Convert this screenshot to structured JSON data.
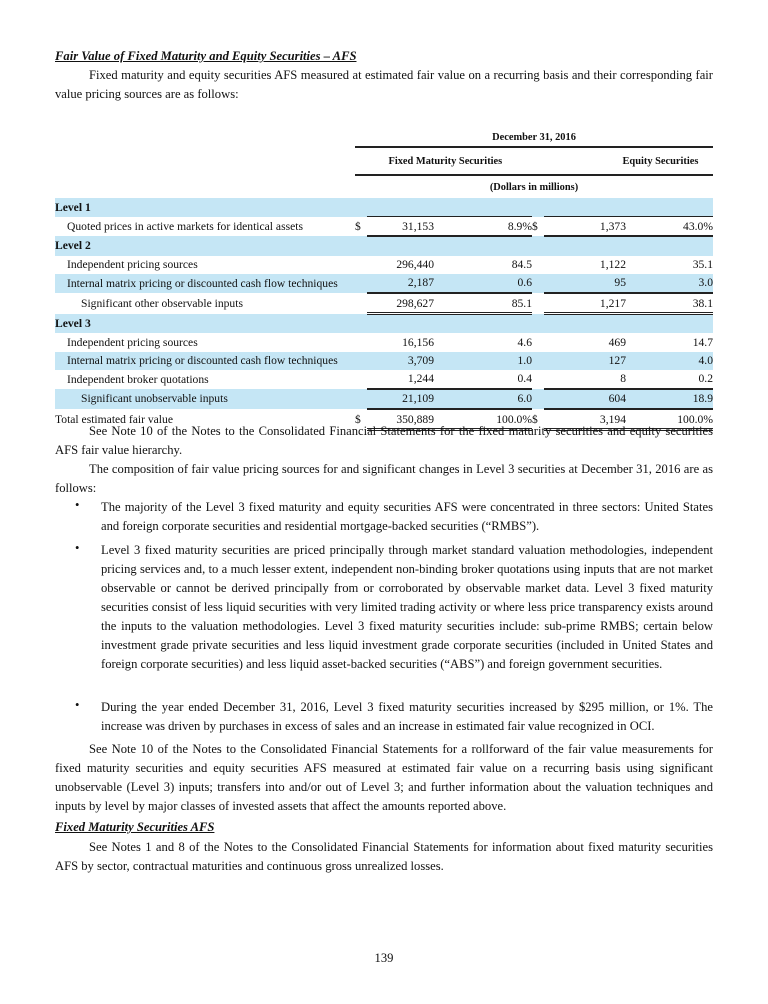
{
  "heading1": "Fair Value of Fixed Maturity and Equity Securities – AFS",
  "intro": "Fixed maturity and equity securities AFS measured at estimated fair value on a recurring basis and their corresponding fair value pricing sources are as follows:",
  "table": {
    "date_header": "December 31, 2016",
    "col_fixed": "Fixed Maturity Securities",
    "col_equity": "Equity Securities",
    "units": "(Dollars in millions)",
    "rows": [
      {
        "label": "Level 1"
      },
      {
        "label": "Quoted prices in active markets for identical assets",
        "d1": "$",
        "fv": "31,153",
        "fp": "8.9%",
        "d2": "$",
        "ev": "1,373",
        "ep": "43.0%"
      },
      {
        "label": "Level 2"
      },
      {
        "label": "Independent pricing sources",
        "fv": "296,440",
        "fp": "84.5",
        "ev": "1,122",
        "ep": "35.1"
      },
      {
        "label": "Internal matrix pricing or discounted cash flow techniques",
        "fv": "2,187",
        "fp": "0.6",
        "ev": "95",
        "ep": "3.0"
      },
      {
        "label": "Significant other observable inputs",
        "fv": "298,627",
        "fp": "85.1",
        "ev": "1,217",
        "ep": "38.1"
      },
      {
        "label": "Level 3"
      },
      {
        "label": "Independent pricing sources",
        "fv": "16,156",
        "fp": "4.6",
        "ev": "469",
        "ep": "14.7"
      },
      {
        "label": "Internal matrix pricing or discounted cash flow techniques",
        "fv": "3,709",
        "fp": "1.0",
        "ev": "127",
        "ep": "4.0"
      },
      {
        "label": "Independent broker quotations",
        "fv": "1,244",
        "fp": "0.4",
        "ev": "8",
        "ep": "0.2"
      },
      {
        "label": "Significant unobservable inputs",
        "fv": "21,109",
        "fp": "6.0",
        "ev": "604",
        "ep": "18.9"
      },
      {
        "label": "Total estimated fair value",
        "d1": "$",
        "fv": "350,889",
        "fp": "100.0%",
        "d2": "$",
        "ev": "3,194",
        "ep": "100.0%"
      }
    ]
  },
  "para1": "See Note 10 of the Notes to the Consolidated Financial Statements for the fixed maturity securities and equity securities AFS fair value hierarchy.",
  "para2": "The composition of fair value pricing sources for and significant changes in Level 3 securities at December 31, 2016 are as follows:",
  "bullet_symbol": "•",
  "bullets": [
    "The majority of the Level 3 fixed maturity and equity securities AFS were concentrated in three sectors: United States and foreign corporate securities and residential mortgage-backed securities (“RMBS”).",
    "Level 3 fixed maturity securities are priced principally through market standard valuation methodologies, independent pricing services and, to a much lesser extent, independent non-binding broker quotations using inputs that are not market observable or cannot be derived principally from or corroborated by observable market data. Level 3 fixed maturity securities consist of less liquid securities with very limited trading activity or where less price transparency exists around the inputs to the valuation methodologies. Level 3 fixed maturity securities include: sub-prime RMBS; certain below investment grade private securities and less liquid investment grade corporate securities (included in United States and foreign corporate securities) and less liquid asset-backed securities (“ABS”) and foreign government securities.",
    "During the year ended December 31, 2016, Level 3 fixed maturity securities increased by $295 million, or 1%. The increase was driven by purchases in excess of sales and an increase in estimated fair value recognized in OCI."
  ],
  "para3": "See Note 10 of the Notes to the Consolidated Financial Statements for a rollforward of the fair value measurements for fixed maturity securities and equity securities AFS measured at estimated fair value on a recurring basis using significant unobservable (Level 3) inputs; transfers into and/or out of Level 3; and further information about the valuation techniques and inputs by level by major classes of invested assets that affect the amounts reported above.",
  "heading2": "Fixed Maturity Securities AFS",
  "para4": "See Notes 1 and 8 of the Notes to the Consolidated Financial Statements for information about fixed maturity securities AFS by sector, contractual maturities and continuous gross unrealized losses.",
  "page_number": "139",
  "colors": {
    "row_highlight": "#c5e6f5"
  }
}
